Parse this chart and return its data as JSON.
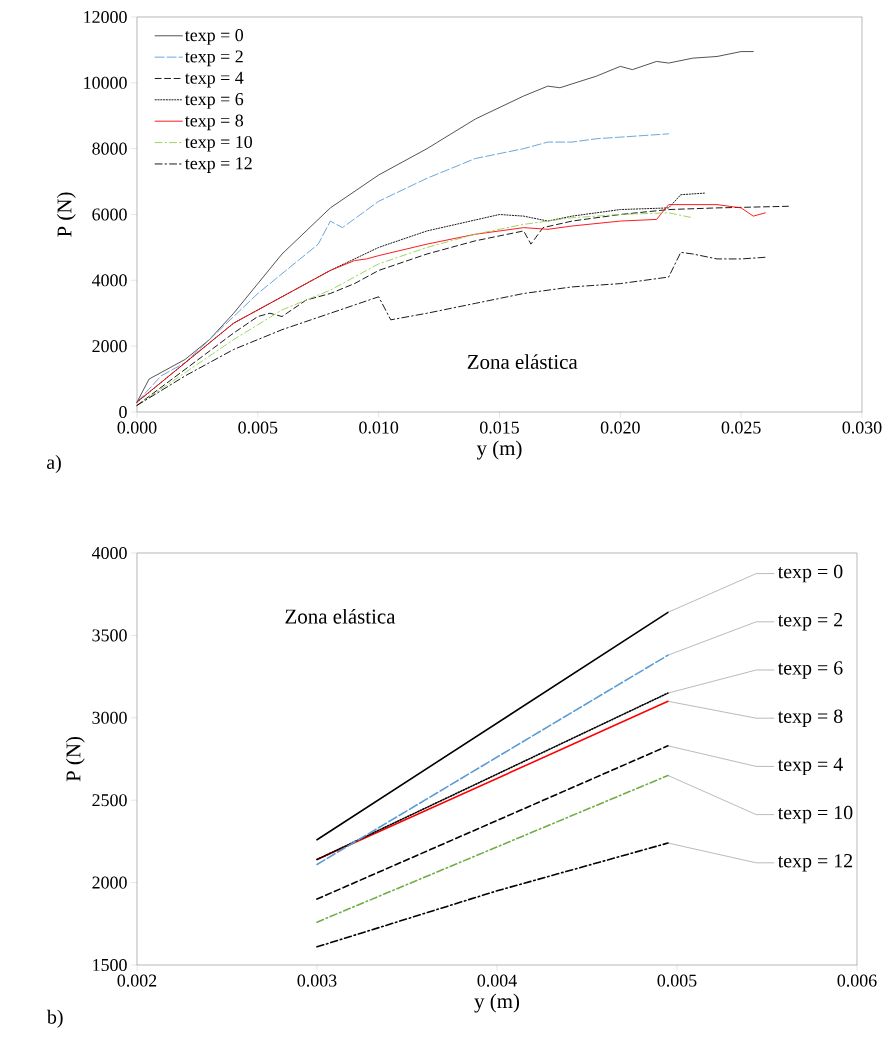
{
  "chart_data": [
    {
      "type": "line",
      "xlabel": "y  (m)",
      "ylabel": "P  (N)",
      "annotations": [
        "a)",
        "Zona elástica"
      ],
      "legend": "top left",
      "xlim": [
        0,
        0.03
      ],
      "ylim": [
        0,
        12000
      ],
      "xticks": [
        {
          "value": 0,
          "label": "0.000"
        },
        {
          "value": 0.005,
          "label": "0.005"
        },
        {
          "value": 0.01,
          "label": "0.010"
        },
        {
          "value": 0.015,
          "label": "0.015"
        },
        {
          "value": 0.02,
          "label": "0.020"
        },
        {
          "value": 0.025,
          "label": "0.025"
        },
        {
          "value": 0.03,
          "label": "0.030"
        }
      ],
      "yticks": [
        0,
        2000,
        4000,
        6000,
        8000,
        10000,
        12000
      ],
      "series": [
        {
          "name": "texp = 0",
          "color": "#404040",
          "line_style": "solid",
          "x": [
            0,
            0.0005,
            0.001,
            0.002,
            0.003,
            0.004,
            0.005,
            0.006,
            0.008,
            0.01,
            0.012,
            0.014,
            0.016,
            0.017,
            0.0175,
            0.019,
            0.02,
            0.0205,
            0.0215,
            0.022,
            0.023,
            0.024,
            0.025,
            0.0255
          ],
          "values": [
            300,
            1000,
            1200,
            1600,
            2200,
            3000,
            3900,
            4800,
            6200,
            7200,
            8000,
            8900,
            9600,
            9900,
            9850,
            10200,
            10500,
            10400,
            10650,
            10600,
            10750,
            10800,
            10950,
            10950
          ]
        },
        {
          "name": "texp = 2",
          "color": "#5b9bd5",
          "line_style": "longdash",
          "x": [
            0,
            0.001,
            0.002,
            0.003,
            0.004,
            0.005,
            0.006,
            0.007,
            0.0075,
            0.008,
            0.0085,
            0.01,
            0.012,
            0.014,
            0.016,
            0.017,
            0.018,
            0.019,
            0.02,
            0.021,
            0.022
          ],
          "values": [
            300,
            1100,
            1500,
            2200,
            2900,
            3600,
            4200,
            4800,
            5100,
            5800,
            5600,
            6400,
            7100,
            7700,
            8000,
            8200,
            8200,
            8300,
            8350,
            8400,
            8450
          ]
        },
        {
          "name": "texp = 4",
          "color": "#000000",
          "line_style": "dashed",
          "x": [
            0,
            0.002,
            0.004,
            0.005,
            0.0055,
            0.006,
            0.007,
            0.008,
            0.009,
            0.01,
            0.012,
            0.014,
            0.016,
            0.0163,
            0.0168,
            0.018,
            0.02,
            0.022,
            0.024,
            0.027
          ],
          "values": [
            200,
            1300,
            2400,
            2900,
            3000,
            2900,
            3400,
            3600,
            3900,
            4300,
            4800,
            5200,
            5500,
            5100,
            5600,
            5800,
            6000,
            6150,
            6200,
            6250
          ]
        },
        {
          "name": "texp = 6",
          "color": "#000000",
          "line_style": "dotted",
          "x": [
            0,
            0.002,
            0.004,
            0.006,
            0.008,
            0.01,
            0.012,
            0.015,
            0.016,
            0.017,
            0.018,
            0.02,
            0.022,
            0.0225,
            0.0235
          ],
          "values": [
            300,
            1500,
            2700,
            3500,
            4300,
            5000,
            5500,
            6000,
            5950,
            5800,
            5950,
            6150,
            6200,
            6600,
            6650
          ]
        },
        {
          "name": "texp = 8",
          "color": "#ff0000",
          "line_style": "solid",
          "x": [
            0,
            0.002,
            0.004,
            0.006,
            0.008,
            0.009,
            0.0095,
            0.01,
            0.012,
            0.014,
            0.016,
            0.017,
            0.018,
            0.02,
            0.0215,
            0.022,
            0.024,
            0.025,
            0.0255,
            0.026
          ],
          "values": [
            300,
            1500,
            2700,
            3500,
            4300,
            4600,
            4650,
            4750,
            5100,
            5400,
            5600,
            5550,
            5650,
            5800,
            5850,
            6300,
            6300,
            6200,
            5950,
            6050
          ]
        },
        {
          "name": "texp = 10",
          "color": "#92d050",
          "line_style": "dashdot",
          "x": [
            0,
            0.002,
            0.004,
            0.006,
            0.008,
            0.01,
            0.012,
            0.014,
            0.016,
            0.018,
            0.02,
            0.022,
            0.023
          ],
          "values": [
            200,
            1200,
            2200,
            3100,
            3700,
            4500,
            5000,
            5400,
            5700,
            5900,
            6000,
            6050,
            5900
          ]
        },
        {
          "name": "texp = 12",
          "color": "#000000",
          "line_style": "dashdot",
          "x": [
            0,
            0.002,
            0.004,
            0.006,
            0.008,
            0.01,
            0.0105,
            0.012,
            0.014,
            0.016,
            0.018,
            0.02,
            0.022,
            0.0225,
            0.023,
            0.024,
            0.025,
            0.026
          ],
          "values": [
            200,
            1100,
            1900,
            2500,
            3000,
            3500,
            2800,
            3000,
            3300,
            3600,
            3800,
            3900,
            4100,
            4850,
            4800,
            4650,
            4650,
            4700
          ]
        }
      ]
    },
    {
      "type": "line",
      "xlabel": "y  (m)",
      "ylabel": "P  (N)",
      "annotations": [
        "b)",
        "Zona elástica"
      ],
      "xlim": [
        0.002,
        0.006
      ],
      "ylim": [
        1500,
        4000
      ],
      "xticks": [
        0.002,
        0.003,
        0.004,
        0.005,
        0.006
      ],
      "yticks": [
        1500,
        2000,
        2500,
        3000,
        3500,
        4000
      ],
      "series": [
        {
          "name": "texp = 0",
          "color": "#000000",
          "line_style": "solid",
          "x": [
            0.003,
            0.00495
          ],
          "values": [
            2260,
            3640
          ]
        },
        {
          "name": "texp = 2",
          "color": "#5b9bd5",
          "line_style": "longdash",
          "x": [
            0.003,
            0.00495
          ],
          "values": [
            2110,
            3380
          ]
        },
        {
          "name": "texp = 6",
          "color": "#000000",
          "line_style": "dotted",
          "x": [
            0.003,
            0.00495
          ],
          "values": [
            2140,
            3150
          ]
        },
        {
          "name": "texp = 8",
          "color": "#ff0000",
          "line_style": "solid",
          "x": [
            0.003,
            0.00495
          ],
          "values": [
            2140,
            3100
          ]
        },
        {
          "name": "texp = 4",
          "color": "#000000",
          "line_style": "dashed",
          "x": [
            0.003,
            0.00495
          ],
          "values": [
            1900,
            2830
          ]
        },
        {
          "name": "texp = 10",
          "color": "#70ad47",
          "line_style": "dashdot",
          "x": [
            0.003,
            0.00495
          ],
          "values": [
            1760,
            2650
          ]
        },
        {
          "name": "texp = 12",
          "color": "#000000",
          "line_style": "dashdot",
          "x": [
            0.003,
            0.004,
            0.00495
          ],
          "values": [
            1610,
            1950,
            2240
          ]
        }
      ]
    }
  ]
}
